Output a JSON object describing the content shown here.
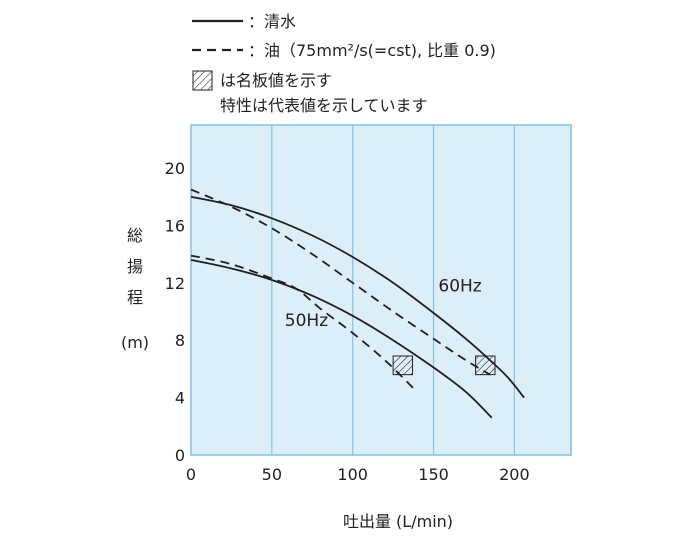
{
  "chart_data": {
    "type": "line",
    "xlabel": "吐出量 (L/min)",
    "ylabel_chars": [
      "総",
      "揚",
      "程",
      "(m)"
    ],
    "xlim": [
      0,
      235
    ],
    "ylim": [
      0,
      23
    ],
    "xticks": [
      0,
      50,
      100,
      150,
      200
    ],
    "yticks": [
      0,
      4,
      8,
      12,
      16,
      20
    ],
    "grid_x": [
      50,
      100,
      150,
      200
    ],
    "grid": true,
    "plot_background": "#dceef7",
    "grid_color": "#7fc4e6",
    "frame_color": "#7fc4e6",
    "legend": [
      {
        "style": "solid",
        "label": "：清水"
      },
      {
        "style": "dashed",
        "label": "：油（75mm²/s(=cst), 比重 0.9)"
      },
      {
        "style": "hatch",
        "label": "は名板値を示す"
      }
    ],
    "note": "特性は代表値を示しています",
    "series": [
      {
        "name": "60Hz",
        "style": "solid",
        "x": [
          0,
          25,
          50,
          75,
          100,
          125,
          150,
          170,
          185,
          196,
          206
        ],
        "y": [
          18.0,
          17.4,
          16.5,
          15.3,
          13.8,
          12.0,
          9.9,
          8.1,
          6.6,
          5.4,
          4.0
        ]
      },
      {
        "name": "",
        "style": "dashed",
        "x": [
          0,
          25,
          50,
          75,
          100,
          125,
          150,
          170,
          185
        ],
        "y": [
          18.5,
          17.3,
          15.8,
          14.0,
          12.0,
          10.0,
          8.1,
          6.6,
          5.6
        ]
      },
      {
        "name": "50Hz",
        "style": "solid",
        "x": [
          0,
          25,
          50,
          75,
          100,
          125,
          150,
          170,
          186
        ],
        "y": [
          13.6,
          13.0,
          12.2,
          11.1,
          9.7,
          8.0,
          6.1,
          4.4,
          2.6
        ]
      },
      {
        "name": "",
        "style": "dashed",
        "x": [
          0,
          25,
          50,
          65,
          80,
          100,
          120,
          138
        ],
        "y": [
          13.9,
          13.3,
          12.3,
          11.6,
          10.2,
          8.5,
          6.6,
          4.6
        ]
      }
    ],
    "rated_boxes": [
      {
        "x0": 125,
        "x1": 137,
        "y0": 5.6,
        "y1": 6.9
      },
      {
        "x0": 176,
        "x1": 188,
        "y0": 5.6,
        "y1": 6.9
      }
    ],
    "series_labels": [
      {
        "text": "60Hz",
        "x": 153,
        "y": 11.4
      },
      {
        "text": "50Hz",
        "x": 58,
        "y": 9.0
      }
    ]
  }
}
